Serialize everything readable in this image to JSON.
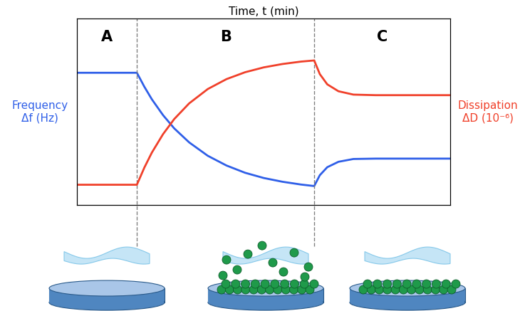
{
  "chart_data": {
    "type": "line",
    "title": "Time, t (min)",
    "y_label": "Frequency\nΔf (Hz)",
    "y2_label": "Dissipation\nΔD (10⁻⁶)",
    "x": [
      0,
      8,
      16,
      18,
      20,
      23,
      26,
      30,
      35,
      40,
      45,
      50,
      55,
      60,
      63.5,
      65,
      67,
      70,
      74,
      80,
      90,
      100
    ],
    "series": [
      {
        "name": "Frequency",
        "color": "#2f5fe8",
        "values": [
          71,
          71,
          71,
          63.5,
          56.8,
          48.3,
          41.2,
          33.7,
          26.5,
          21.3,
          17.4,
          14.6,
          12.6,
          11.1,
          10.3,
          16.1,
          20.4,
          23.3,
          24.8,
          25,
          25,
          25
        ]
      },
      {
        "name": "Dissipation",
        "color": "#f0402a",
        "axis": "y2",
        "values": [
          11,
          11,
          11,
          20.2,
          28.2,
          38.1,
          46.2,
          54.6,
          62.3,
          67.6,
          71.3,
          73.9,
          75.7,
          77.0,
          77.6,
          70.3,
          64.8,
          61.1,
          59.3,
          59,
          59,
          59
        ]
      }
    ],
    "regions": [
      {
        "label": "A",
        "start": 0,
        "end": 16
      },
      {
        "label": "B",
        "start": 16,
        "end": 63.5
      },
      {
        "label": "C",
        "start": 63.5,
        "end": 100
      }
    ],
    "xlim": [
      0,
      100
    ],
    "ylim": [
      0,
      100
    ],
    "y2lim": [
      0,
      100
    ],
    "tick_labels": false,
    "grid": false
  }
}
